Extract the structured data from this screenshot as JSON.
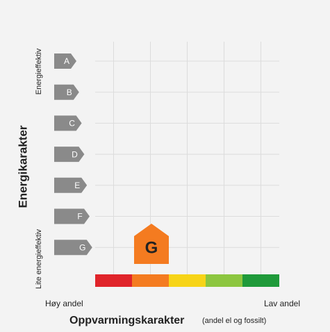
{
  "header": {
    "y_title": "Energikarakter",
    "y_top_label": "Energieffektiv",
    "y_bottom_label": "Lite energieffektiv",
    "x_title": "Oppvarmingskarakter",
    "x_subtitle": "(andel el og fossilt)",
    "x_left_label": "Høy andel",
    "x_right_label": "Lav andel"
  },
  "energy_classes": [
    "A",
    "B",
    "C",
    "D",
    "E",
    "F",
    "G"
  ],
  "heating_scale_colors": [
    "#e0242a",
    "#f47b20",
    "#f7d417",
    "#8cc63f",
    "#1f9a3a"
  ],
  "marker": {
    "label": "G",
    "color": "#f47b20"
  }
}
